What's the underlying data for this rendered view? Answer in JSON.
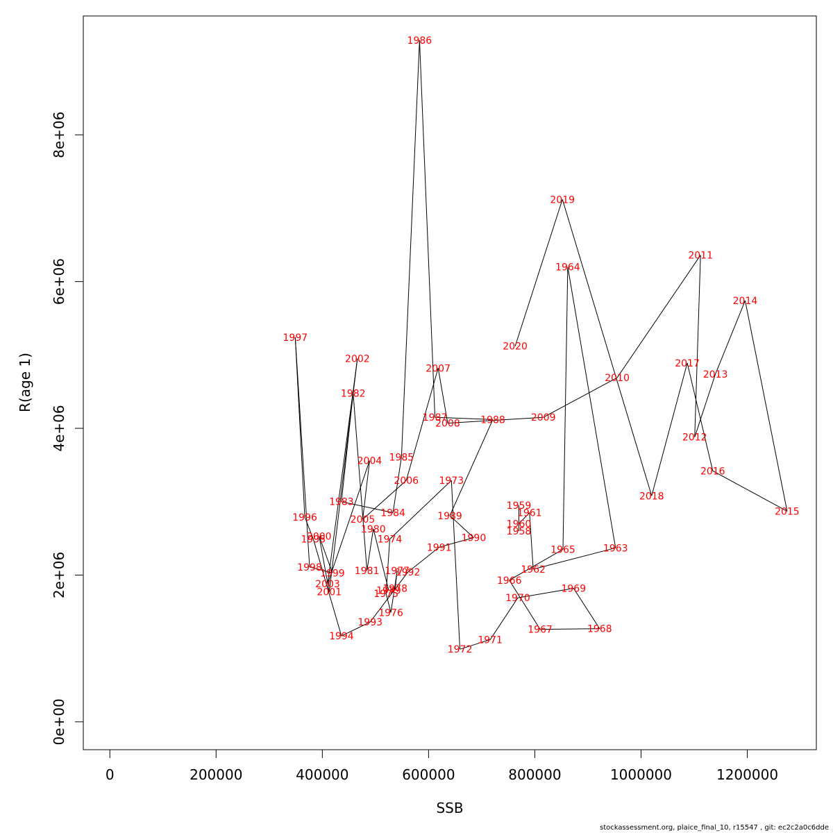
{
  "chart_data": {
    "type": "scatter",
    "connected": true,
    "xlabel": "SSB",
    "ylabel": "R(age 1)",
    "xlim": [
      -50000,
      1330000
    ],
    "ylim": [
      -380000,
      9620000
    ],
    "x_ticks": [
      0,
      200000,
      400000,
      600000,
      800000,
      1000000,
      1200000
    ],
    "x_tick_labels": [
      "0",
      "200000",
      "400000",
      "600000",
      "800000",
      "1000000",
      "1200000"
    ],
    "y_ticks": [
      0,
      2000000,
      4000000,
      6000000,
      8000000
    ],
    "y_tick_labels": [
      "0e+00",
      "2e+06",
      "4e+06",
      "6e+06",
      "8e+06"
    ],
    "line_color": "#000000",
    "label_color": "#ff0000",
    "points": [
      {
        "year": "1958",
        "ssb": 770000,
        "rec": 2600000
      },
      {
        "year": "1959",
        "ssb": 770000,
        "rec": 2950000
      },
      {
        "year": "1960",
        "ssb": 770000,
        "rec": 2700000
      },
      {
        "year": "1961",
        "ssb": 790000,
        "rec": 2850000
      },
      {
        "year": "1962",
        "ssb": 797000,
        "rec": 2080000
      },
      {
        "year": "1963",
        "ssb": 952000,
        "rec": 2370000
      },
      {
        "year": "1964",
        "ssb": 862000,
        "rec": 6200000
      },
      {
        "year": "1965",
        "ssb": 853000,
        "rec": 2350000
      },
      {
        "year": "1966",
        "ssb": 752000,
        "rec": 1930000
      },
      {
        "year": "1967",
        "ssb": 810000,
        "rec": 1260000
      },
      {
        "year": "1968",
        "ssb": 922000,
        "rec": 1270000
      },
      {
        "year": "1969",
        "ssb": 873000,
        "rec": 1820000
      },
      {
        "year": "1970",
        "ssb": 768000,
        "rec": 1690000
      },
      {
        "year": "1971",
        "ssb": 716000,
        "rec": 1120000
      },
      {
        "year": "1972",
        "ssb": 659000,
        "rec": 990000
      },
      {
        "year": "1973",
        "ssb": 643000,
        "rec": 3290000
      },
      {
        "year": "1974",
        "ssb": 527000,
        "rec": 2490000
      },
      {
        "year": "1975",
        "ssb": 520000,
        "rec": 1750000
      },
      {
        "year": "1976",
        "ssb": 529000,
        "rec": 1490000
      },
      {
        "year": "1977",
        "ssb": 541000,
        "rec": 2060000
      },
      {
        "year": "1978",
        "ssb": 537000,
        "rec": 1820000
      },
      {
        "year": "1979",
        "ssb": 525000,
        "rec": 1790000
      },
      {
        "year": "1980",
        "ssb": 496000,
        "rec": 2630000
      },
      {
        "year": "1981",
        "ssb": 484000,
        "rec": 2060000
      },
      {
        "year": "1982",
        "ssb": 458000,
        "rec": 4480000
      },
      {
        "year": "1983",
        "ssb": 436000,
        "rec": 3000000
      },
      {
        "year": "1984",
        "ssb": 533000,
        "rec": 2850000
      },
      {
        "year": "1985",
        "ssb": 549000,
        "rec": 3610000
      },
      {
        "year": "1986",
        "ssb": 583000,
        "rec": 9290000
      },
      {
        "year": "1987",
        "ssb": 612000,
        "rec": 4150000
      },
      {
        "year": "1988",
        "ssb": 721000,
        "rec": 4120000
      },
      {
        "year": "1989",
        "ssb": 640000,
        "rec": 2810000
      },
      {
        "year": "1990",
        "ssb": 685000,
        "rec": 2510000
      },
      {
        "year": "1991",
        "ssb": 620000,
        "rec": 2380000
      },
      {
        "year": "1992",
        "ssb": 561000,
        "rec": 2040000
      },
      {
        "year": "1993",
        "ssb": 490000,
        "rec": 1360000
      },
      {
        "year": "1994",
        "ssb": 436000,
        "rec": 1170000
      },
      {
        "year": "1995",
        "ssb": 383000,
        "rec": 2490000
      },
      {
        "year": "1996",
        "ssb": 367000,
        "rec": 2790000
      },
      {
        "year": "1997",
        "ssb": 349000,
        "rec": 5240000
      },
      {
        "year": "1998",
        "ssb": 376000,
        "rec": 2110000
      },
      {
        "year": "1999",
        "ssb": 419000,
        "rec": 2030000
      },
      {
        "year": "2000",
        "ssb": 394000,
        "rec": 2530000
      },
      {
        "year": "2001",
        "ssb": 413000,
        "rec": 1770000
      },
      {
        "year": "2002",
        "ssb": 466000,
        "rec": 4950000
      },
      {
        "year": "2003",
        "ssb": 410000,
        "rec": 1880000
      },
      {
        "year": "2004",
        "ssb": 489000,
        "rec": 3560000
      },
      {
        "year": "2005",
        "ssb": 476000,
        "rec": 2760000
      },
      {
        "year": "2006",
        "ssb": 558000,
        "rec": 3290000
      },
      {
        "year": "2007",
        "ssb": 618000,
        "rec": 4820000
      },
      {
        "year": "2008",
        "ssb": 636000,
        "rec": 4070000
      },
      {
        "year": "2009",
        "ssb": 816000,
        "rec": 4150000
      },
      {
        "year": "2010",
        "ssb": 955000,
        "rec": 4690000
      },
      {
        "year": "2011",
        "ssb": 1112000,
        "rec": 6360000
      },
      {
        "year": "2012",
        "ssb": 1101000,
        "rec": 3880000
      },
      {
        "year": "2013",
        "ssb": 1140000,
        "rec": 4740000
      },
      {
        "year": "2014",
        "ssb": 1196000,
        "rec": 5740000
      },
      {
        "year": "2015",
        "ssb": 1275000,
        "rec": 2870000
      },
      {
        "year": "2016",
        "ssb": 1135000,
        "rec": 3420000
      },
      {
        "year": "2017",
        "ssb": 1087000,
        "rec": 4890000
      },
      {
        "year": "2018",
        "ssb": 1020000,
        "rec": 3080000
      },
      {
        "year": "2019",
        "ssb": 852000,
        "rec": 7120000
      },
      {
        "year": "2020",
        "ssb": 763000,
        "rec": 5120000
      }
    ]
  },
  "footer": {
    "text": "stockassessment.org, plaice_final_10, r15547 , git: ec2c2a0c6dde"
  }
}
